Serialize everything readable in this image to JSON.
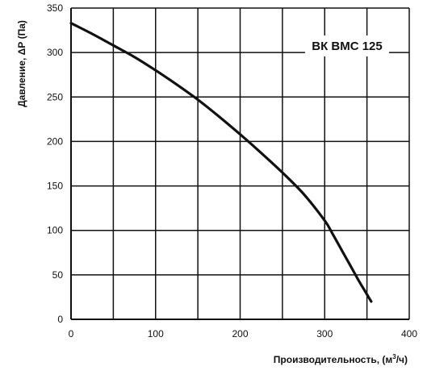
{
  "chart_data": {
    "type": "line",
    "title": "ВК ВМС 125",
    "xlabel": "Производительность, (м",
    "xlabel_sup": "3",
    "xlabel_tail": "/ч)",
    "ylabel": "Давление, ΔР (Па)",
    "xlim": [
      0,
      400
    ],
    "ylim": [
      0,
      350
    ],
    "xticks": [
      0,
      100,
      200,
      300,
      400
    ],
    "yticks": [
      0,
      50,
      100,
      150,
      200,
      250,
      300,
      350
    ],
    "x_gridlines": [
      0,
      50,
      100,
      150,
      200,
      250,
      300,
      350,
      400
    ],
    "y_gridlines": [
      0,
      50,
      100,
      150,
      200,
      250,
      300,
      350
    ],
    "grid": true,
    "line_color": "#111111",
    "series": [
      {
        "name": "",
        "x": [
          0,
          25,
          50,
          75,
          100,
          125,
          150,
          175,
          200,
          225,
          250,
          275,
          300,
          310,
          320,
          330,
          340,
          350,
          355
        ],
        "y": [
          333,
          321,
          308,
          295,
          280,
          264,
          247,
          228,
          208,
          187,
          165,
          141,
          111,
          95,
          78,
          61,
          44,
          28,
          20
        ]
      }
    ]
  }
}
